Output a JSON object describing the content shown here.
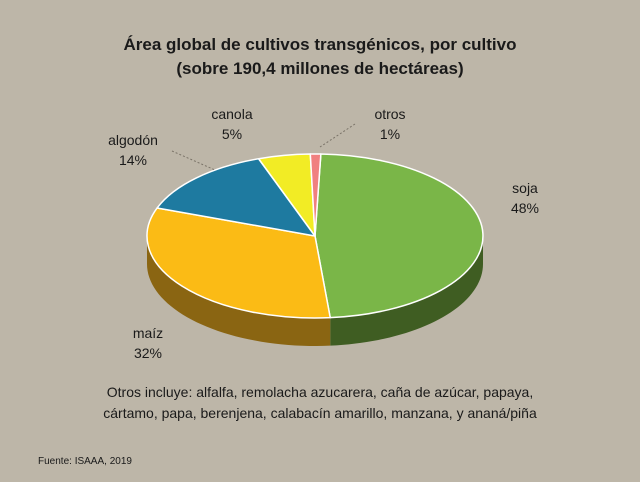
{
  "chart_data": {
    "type": "pie",
    "title": "Área global de cultivos transgénicos, por cultivo",
    "subtitle": "(sobre 190,4 millones de hectáreas)",
    "slices": [
      {
        "label": "soja",
        "value": 48,
        "value_label": "48%",
        "color": "#7ab648",
        "side": "#3f5d22"
      },
      {
        "label": "maíz",
        "value": 32,
        "value_label": "32%",
        "color": "#fbbb15",
        "side": "#8a6512"
      },
      {
        "label": "algodón",
        "value": 14,
        "value_label": "14%",
        "color": "#1e7aa0",
        "side": "#124860"
      },
      {
        "label": "canola",
        "value": 5,
        "value_label": "5%",
        "color": "#f2ec25",
        "side": "#8a8514"
      },
      {
        "label": "otros",
        "value": 1,
        "value_label": "1%",
        "color": "#f08080",
        "side": "#8a4848"
      }
    ],
    "note": [
      "Otros incluye: alfalfa, remolacha azucarera, caña de azúcar, papaya,",
      "cártamo, papa, berenjena, calabacín amarillo, manzana, y ananá/piña"
    ],
    "source": "Fuente: ISAAA, 2019"
  }
}
